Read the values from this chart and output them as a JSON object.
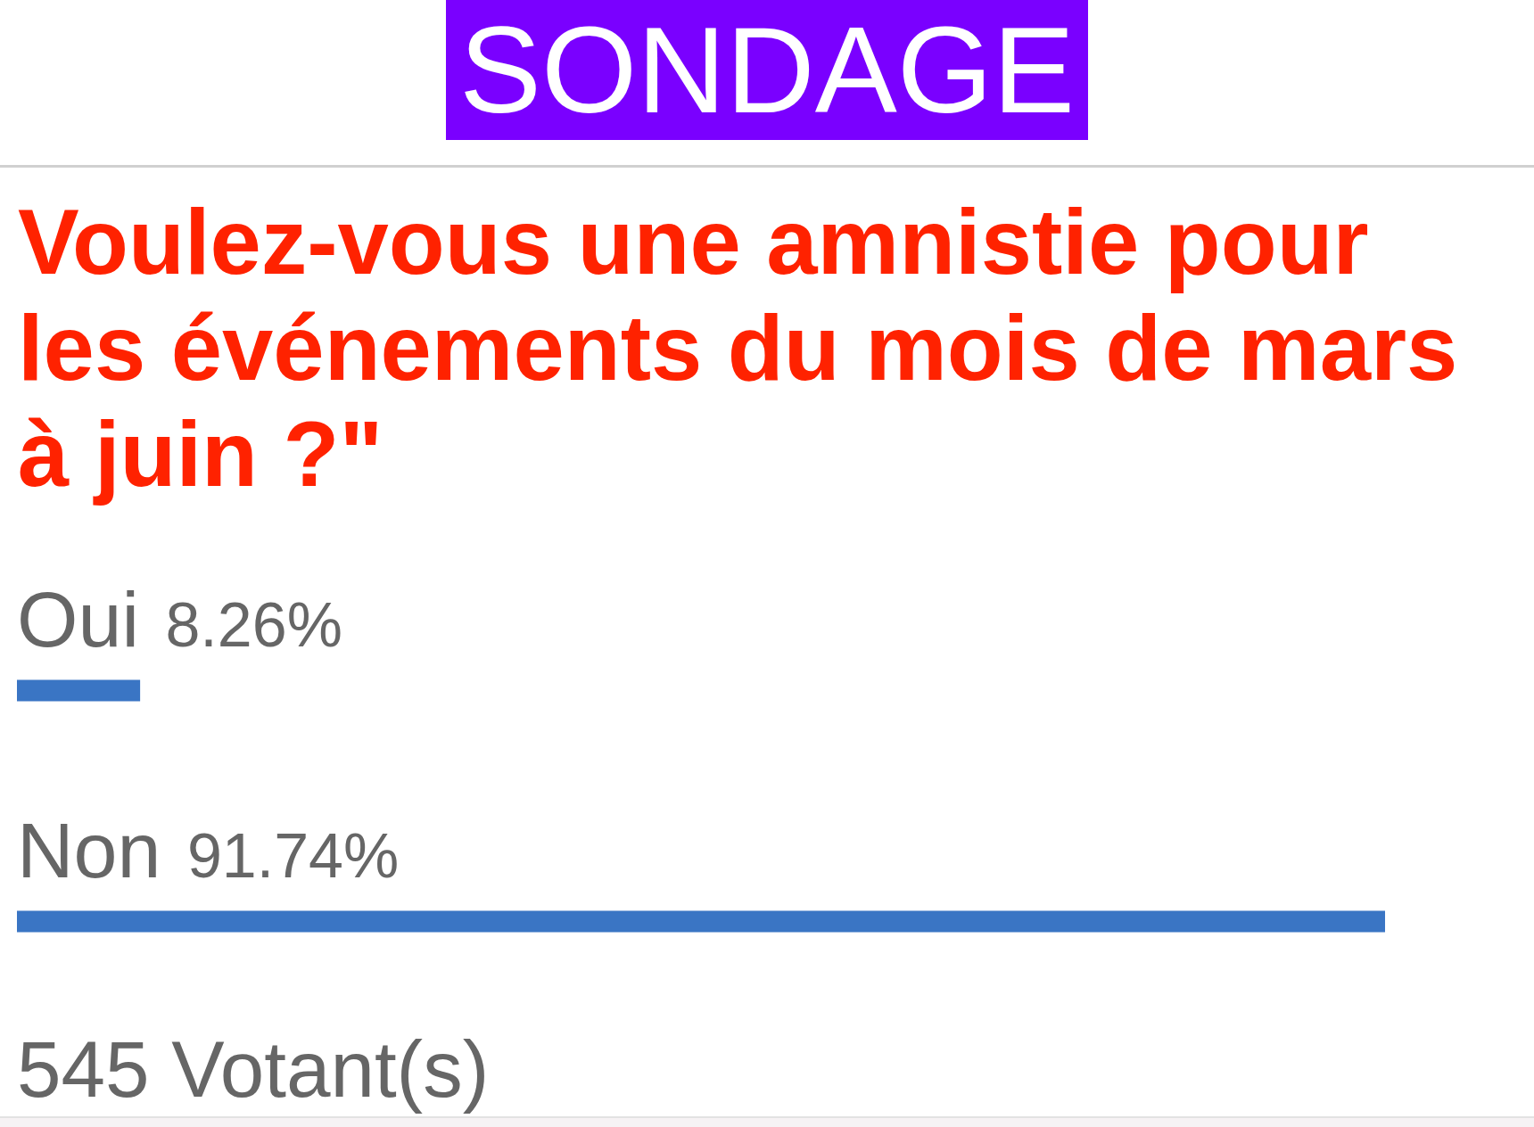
{
  "chart_data": {
    "type": "bar",
    "orientation": "horizontal",
    "title": "SONDAGE",
    "subtitle": "Voulez-vous une amnistie pour les événements du mois de mars à juin ?\"",
    "categories": [
      "Oui",
      "Non"
    ],
    "values": [
      8.26,
      91.74
    ],
    "value_labels": [
      "8.26%",
      "91.74%"
    ],
    "color": "#3a75c4",
    "tick_labels": false,
    "annotations": [
      "545 Votant(s)"
    ]
  }
}
